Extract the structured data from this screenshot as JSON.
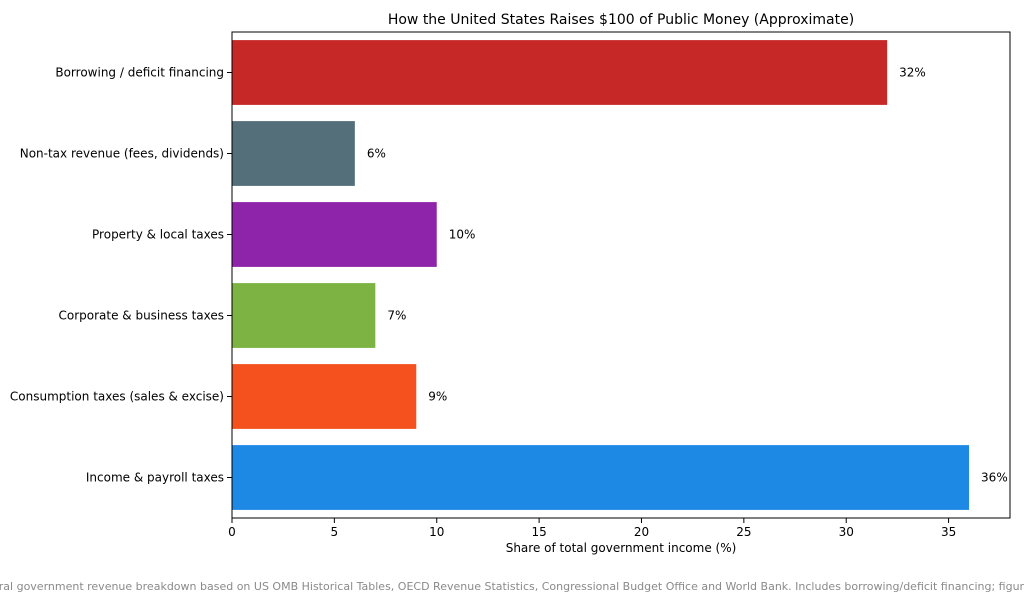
{
  "chart_data": {
    "type": "bar",
    "orientation": "horizontal",
    "title": "How the United States Raises $100 of Public Money (Approximate)",
    "xlabel": "Share of total government income (%)",
    "ylabel": "",
    "xlim": [
      0,
      38
    ],
    "xticks": [
      0,
      5,
      10,
      15,
      20,
      25,
      30,
      35
    ],
    "grid": false,
    "categories": [
      "Income & payroll taxes",
      "Consumption taxes (sales & excise)",
      "Corporate & business taxes",
      "Property & local taxes",
      "Non-tax revenue (fees, dividends)",
      "Borrowing / deficit financing"
    ],
    "values": [
      36,
      9,
      7,
      10,
      6,
      32
    ],
    "value_labels": [
      "36%",
      "9%",
      "7%",
      "10%",
      "6%",
      "32%"
    ],
    "colors": [
      "#1e88e5",
      "#f4511e",
      "#7cb342",
      "#8e24aa",
      "#546e7a",
      "#c62828"
    ]
  },
  "footnote": "eral government revenue breakdown based on US OMB Historical Tables, OECD Revenue Statistics, Congressional Budget Office and World Bank. Includes borrowing/deficit financing; figures r"
}
